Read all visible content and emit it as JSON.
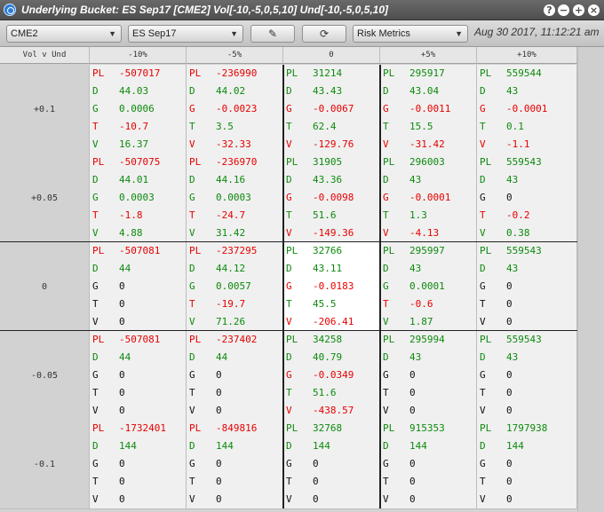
{
  "window": {
    "title": "Underlying Bucket: ES Sep17 [CME2] Vol[-10,-5,0,5,10] Und[-10,-5,0,5,10]"
  },
  "toolbar": {
    "exchange": "CME2",
    "contract": "ES Sep17",
    "metric": "Risk Metrics",
    "datetime": "Aug 30 2017, 11:12:21 am"
  },
  "grid": {
    "corner": "Vol v Und",
    "columns": [
      "-10%",
      "-5%",
      "0",
      "+5%",
      "+10%"
    ],
    "rows": [
      {
        "label": "+0.1",
        "cells": [
          {
            "PL": "-507017",
            "D": "44.03",
            "G": "0.0006",
            "T": "-10.7",
            "V": "16.37"
          },
          {
            "PL": "-236990",
            "D": "44.02",
            "G": "-0.0023",
            "T": "3.5",
            "V": "-32.33"
          },
          {
            "PL": "31214",
            "D": "43.43",
            "G": "-0.0067",
            "T": "62.4",
            "V": "-129.76"
          },
          {
            "PL": "295917",
            "D": "43.04",
            "G": "-0.0011",
            "T": "15.5",
            "V": "-31.42"
          },
          {
            "PL": "559544",
            "D": "43",
            "G": "-0.0001",
            "T": "0.1",
            "V": "-1.1"
          }
        ]
      },
      {
        "label": "+0.05",
        "cells": [
          {
            "PL": "-507075",
            "D": "44.01",
            "G": "0.0003",
            "T": "-1.8",
            "V": "4.88"
          },
          {
            "PL": "-236970",
            "D": "44.16",
            "G": "0.0003",
            "T": "-24.7",
            "V": "31.42"
          },
          {
            "PL": "31905",
            "D": "43.36",
            "G": "-0.0098",
            "T": "51.6",
            "V": "-149.36"
          },
          {
            "PL": "296003",
            "D": "43",
            "G": "-0.0001",
            "T": "1.3",
            "V": "-4.13"
          },
          {
            "PL": "559543",
            "D": "43",
            "G": "0",
            "T": "-0.2",
            "V": "0.38"
          }
        ]
      },
      {
        "label": "0",
        "cells": [
          {
            "PL": "-507081",
            "D": "44",
            "G": "0",
            "T": "0",
            "V": "0"
          },
          {
            "PL": "-237295",
            "D": "44.12",
            "G": "0.0057",
            "T": "-19.7",
            "V": "71.26"
          },
          {
            "PL": "32766",
            "D": "43.11",
            "G": "-0.0183",
            "T": "45.5",
            "V": "-206.41"
          },
          {
            "PL": "295997",
            "D": "43",
            "G": "0.0001",
            "T": "-0.6",
            "V": "1.87"
          },
          {
            "PL": "559543",
            "D": "43",
            "G": "0",
            "T": "0",
            "V": "0"
          }
        ]
      },
      {
        "label": "-0.05",
        "cells": [
          {
            "PL": "-507081",
            "D": "44",
            "G": "0",
            "T": "0",
            "V": "0"
          },
          {
            "PL": "-237402",
            "D": "44",
            "G": "0",
            "T": "0",
            "V": "0"
          },
          {
            "PL": "34258",
            "D": "40.79",
            "G": "-0.0349",
            "T": "51.6",
            "V": "-438.57"
          },
          {
            "PL": "295994",
            "D": "43",
            "G": "0",
            "T": "0",
            "V": "0"
          },
          {
            "PL": "559543",
            "D": "43",
            "G": "0",
            "T": "0",
            "V": "0"
          }
        ]
      },
      {
        "label": "-0.1",
        "cells": [
          {
            "PL": "-1732401",
            "D": "144",
            "G": "0",
            "T": "0",
            "V": "0"
          },
          {
            "PL": "-849816",
            "D": "144",
            "G": "0",
            "T": "0",
            "V": "0"
          },
          {
            "PL": "32768",
            "D": "144",
            "G": "0",
            "T": "0",
            "V": "0"
          },
          {
            "PL": "915353",
            "D": "144",
            "G": "0",
            "T": "0",
            "V": "0"
          },
          {
            "PL": "1797938",
            "D": "144",
            "G": "0",
            "T": "0",
            "V": "0"
          }
        ]
      }
    ]
  },
  "colors": {
    "positive": "#0d8a0d",
    "negative": "#e60000",
    "zero": "#111111"
  }
}
